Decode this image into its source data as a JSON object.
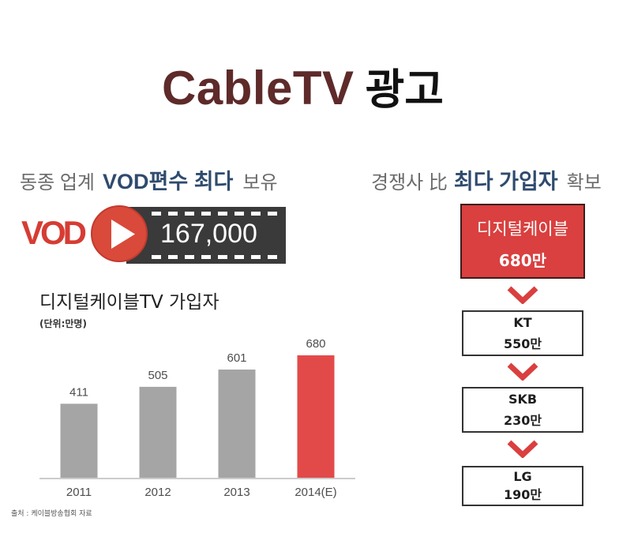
{
  "title": {
    "brand": "CableTV",
    "suffix": "광고"
  },
  "vod_section": {
    "heading_lead": "동종 업계",
    "heading_highlight": "VOD편수 최다",
    "heading_tail": "보유",
    "logo_text": "VOD",
    "play_icon": "play-icon",
    "count": "167,000"
  },
  "chart_data": {
    "type": "bar",
    "title": "디지털케이블TV 가입자",
    "unit": "(단위:만명)",
    "categories": [
      "2011",
      "2012",
      "2013",
      "2014(E)"
    ],
    "values": [
      411,
      505,
      601,
      680
    ],
    "bar_colors": [
      "#a5a5a5",
      "#a5a5a5",
      "#a5a5a5",
      "#e24a4a"
    ],
    "grid": false,
    "source": "출처 : 케이블방송협회 자료"
  },
  "subscriber_section": {
    "heading_lead": "경쟁사 比",
    "heading_highlight": "최다 가입자",
    "heading_tail": "확보",
    "arrow_icon": "chevron-down-icon",
    "ranking": [
      {
        "name": "디지털케이블",
        "value": "680만"
      },
      {
        "name": "KT",
        "value": "550만"
      },
      {
        "name": "SKB",
        "value": "230만"
      },
      {
        "name": "LG",
        "value": "190만"
      }
    ]
  },
  "colors": {
    "brand": "#5e2a2a",
    "accent": "#2f4b6e",
    "muted": "#6b6b6b",
    "red": "#d9403f",
    "vod_red": "#d63c33",
    "play_circle": "#d94a3b",
    "film_strip": "#3a3a3a",
    "leader_box": "#d9403f"
  }
}
